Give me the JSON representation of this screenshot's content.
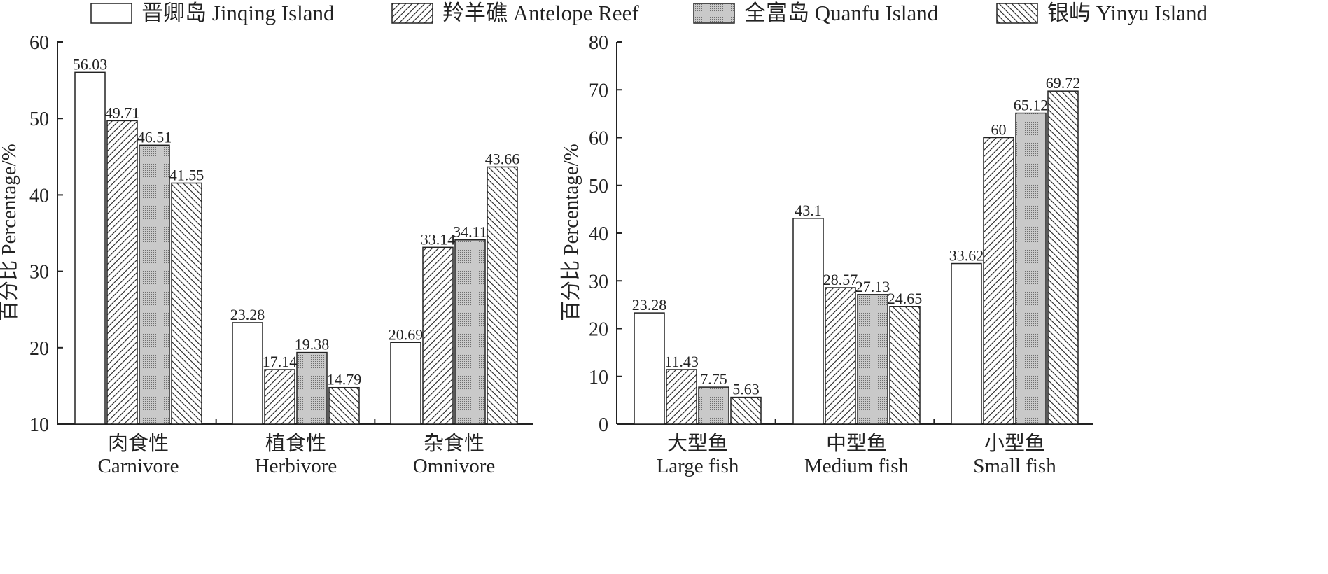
{
  "legend": [
    {
      "label": "晋卿岛 Jinqing Island",
      "pattern": "none"
    },
    {
      "label": "羚羊礁 Antelope Reef",
      "pattern": "diag-up"
    },
    {
      "label": "全富岛 Quanfu Island",
      "pattern": "dots"
    },
    {
      "label": "银屿 Yinyu Island",
      "pattern": "diag-down"
    }
  ],
  "chart_data": [
    {
      "type": "bar",
      "ylabel": "百分比 Percentage/%",
      "ylim": [
        10,
        60
      ],
      "yticks": [
        "10",
        "20",
        "30",
        "40",
        "50",
        "60"
      ],
      "categories": [
        {
          "cn": "肉食性",
          "en": "Carnivore"
        },
        {
          "cn": "植食性",
          "en": "Herbivore"
        },
        {
          "cn": "杂食性",
          "en": "Omnivore"
        }
      ],
      "series": [
        {
          "name": "晋卿岛 Jinqing Island",
          "values": [
            56.03,
            23.28,
            20.69
          ],
          "labels": [
            "56.03",
            "23.28",
            "20.69"
          ]
        },
        {
          "name": "羚羊礁 Antelope Reef",
          "values": [
            49.71,
            17.14,
            33.14
          ],
          "labels": [
            "49.71",
            "17.14",
            "33.14"
          ]
        },
        {
          "name": "全富岛 Quanfu Island",
          "values": [
            46.51,
            19.38,
            34.11
          ],
          "labels": [
            "46.51",
            "19.38",
            "34.11"
          ]
        },
        {
          "name": "银屿 Yinyu Island",
          "values": [
            41.55,
            14.79,
            43.66
          ],
          "labels": [
            "41.55",
            "14.79",
            "43.66"
          ]
        }
      ]
    },
    {
      "type": "bar",
      "ylabel": "百分比 Percentage/%",
      "ylim": [
        0,
        80
      ],
      "yticks": [
        "0",
        "10",
        "20",
        "30",
        "40",
        "50",
        "60",
        "70",
        "80"
      ],
      "categories": [
        {
          "cn": "大型鱼",
          "en": "Large fish"
        },
        {
          "cn": "中型鱼",
          "en": "Medium fish"
        },
        {
          "cn": "小型鱼",
          "en": "Small fish"
        }
      ],
      "series": [
        {
          "name": "晋卿岛 Jinqing Island",
          "values": [
            23.28,
            43.1,
            33.62
          ],
          "labels": [
            "23.28",
            "43.1",
            "33.62"
          ]
        },
        {
          "name": "羚羊礁 Antelope Reef",
          "values": [
            11.43,
            28.57,
            60
          ],
          "labels": [
            "11.43",
            "28.57",
            "60"
          ]
        },
        {
          "name": "全富岛 Quanfu Island",
          "values": [
            7.75,
            27.13,
            65.12
          ],
          "labels": [
            "7.75",
            "27.13",
            "65.12"
          ]
        },
        {
          "name": "银屿 Yinyu Island",
          "values": [
            5.63,
            24.65,
            69.72
          ],
          "labels": [
            "5.63",
            "24.65",
            "69.72"
          ]
        }
      ]
    }
  ]
}
